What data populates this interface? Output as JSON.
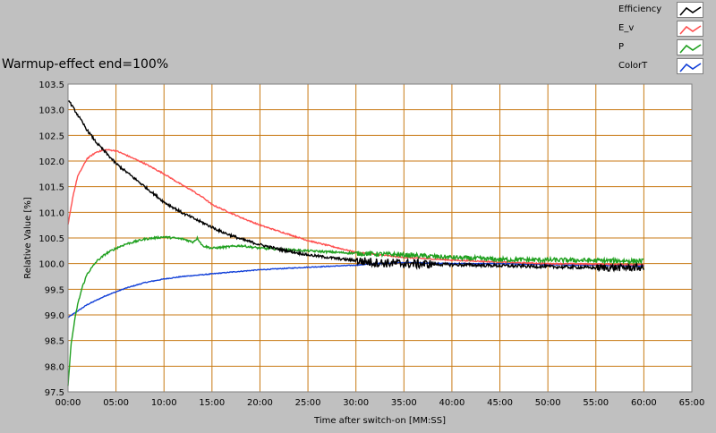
{
  "chart_data": {
    "type": "line",
    "title": "Warmup-effect end=100%",
    "xlabel": "Time after switch-on [MM:SS]",
    "ylabel": "Relative Value [%]",
    "xlim": [
      0,
      65
    ],
    "ylim": [
      97.5,
      103.5
    ],
    "x_ticks": [
      0,
      5,
      10,
      15,
      20,
      25,
      30,
      35,
      40,
      45,
      50,
      55,
      60,
      65
    ],
    "x_tick_labels": [
      "00:00",
      "05:00",
      "10:00",
      "15:00",
      "20:00",
      "25:00",
      "30:00",
      "35:00",
      "40:00",
      "45:00",
      "50:00",
      "55:00",
      "60:00",
      "65:00"
    ],
    "y_ticks": [
      97.5,
      98.0,
      98.5,
      99.0,
      99.5,
      100.0,
      100.5,
      101.0,
      101.5,
      102.0,
      102.5,
      103.0,
      103.5
    ],
    "y_tick_labels": [
      "97.5",
      "98.0",
      "98.5",
      "99.0",
      "99.5",
      "100.0",
      "100.5",
      "101.0",
      "101.5",
      "102.0",
      "102.5",
      "103.0",
      "103.5"
    ],
    "grid": true,
    "legend_position": "top-right",
    "series": [
      {
        "name": "Efficiency",
        "color": "#000000",
        "x": [
          0,
          1,
          2,
          3,
          4,
          5,
          6,
          8,
          10,
          12,
          14,
          16,
          18,
          20,
          22,
          25,
          28,
          30,
          32,
          35,
          40,
          45,
          50,
          55,
          60
        ],
        "y": [
          103.2,
          102.9,
          102.6,
          102.35,
          102.15,
          101.95,
          101.8,
          101.5,
          101.2,
          100.98,
          100.8,
          100.62,
          100.48,
          100.37,
          100.28,
          100.17,
          100.1,
          100.06,
          100.02,
          100.0,
          99.98,
          99.96,
          99.94,
          99.92,
          99.92
        ]
      },
      {
        "name": "E_v",
        "color": "#ff4f4f",
        "x": [
          0,
          0.5,
          1,
          2,
          3,
          4,
          5,
          6,
          8,
          10,
          12,
          13,
          13.5,
          14,
          15,
          18,
          20,
          25,
          30,
          35,
          40,
          45,
          50,
          55,
          60
        ],
        "y": [
          100.75,
          101.3,
          101.7,
          102.05,
          102.18,
          102.22,
          102.2,
          102.12,
          101.95,
          101.75,
          101.52,
          101.42,
          101.35,
          101.3,
          101.15,
          100.9,
          100.75,
          100.45,
          100.22,
          100.12,
          100.07,
          100.03,
          100.0,
          99.99,
          99.98
        ]
      },
      {
        "name": "P",
        "color": "#1fa01f",
        "x": [
          0,
          0.3,
          0.7,
          1,
          1.5,
          2,
          3,
          4,
          5,
          6,
          8,
          10,
          12,
          13,
          13.5,
          14,
          15,
          18,
          20,
          25,
          30,
          35,
          40,
          45,
          50,
          55,
          60
        ],
        "y": [
          97.6,
          98.4,
          98.9,
          99.2,
          99.55,
          99.8,
          100.05,
          100.2,
          100.3,
          100.38,
          100.48,
          100.52,
          100.48,
          100.42,
          100.5,
          100.35,
          100.3,
          100.35,
          100.3,
          100.25,
          100.2,
          100.17,
          100.12,
          100.08,
          100.07,
          100.06,
          100.05
        ]
      },
      {
        "name": "ColorT",
        "color": "#1240d8",
        "x": [
          0,
          2,
          4,
          6,
          8,
          10,
          12,
          15,
          18,
          20,
          25,
          30,
          32,
          35,
          40,
          45,
          50,
          55,
          60
        ],
        "y": [
          98.95,
          99.2,
          99.38,
          99.52,
          99.63,
          99.7,
          99.75,
          99.8,
          99.85,
          99.88,
          99.93,
          99.97,
          100.0,
          100.02,
          100.0,
          100.0,
          99.98,
          99.97,
          99.95
        ]
      }
    ]
  }
}
